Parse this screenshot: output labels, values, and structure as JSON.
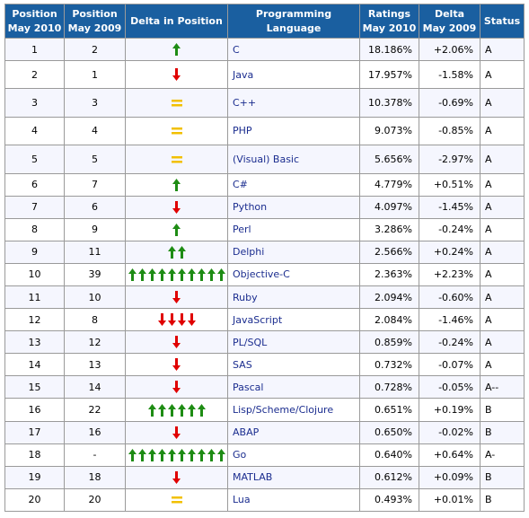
{
  "headers": {
    "pos2010": [
      "Position",
      "May 2010"
    ],
    "pos2009": [
      "Position",
      "May 2009"
    ],
    "delta_pos": "Delta in Position",
    "language": "Programming Language",
    "ratings": [
      "Ratings",
      "May 2010"
    ],
    "delta_rating": [
      "Delta",
      "May 2009"
    ],
    "status": "Status"
  },
  "colors": {
    "header_bg": "#1a5fa0",
    "up_arrow": "#1e8c14",
    "down_arrow": "#e00000",
    "equal": "#f2c000",
    "link": "#1b2d8f"
  },
  "rows": [
    {
      "pos2010": "1",
      "pos2009": "2",
      "delta": {
        "type": "up",
        "count": 1
      },
      "language": "C",
      "rating": "18.186%",
      "delta_rating": "+2.06%",
      "status": "A"
    },
    {
      "pos2010": "2",
      "pos2009": "1",
      "delta": {
        "type": "down",
        "count": 1
      },
      "language": "Java",
      "rating": "17.957%",
      "delta_rating": "-1.58%",
      "status": "A"
    },
    {
      "pos2010": "3",
      "pos2009": "3",
      "delta": {
        "type": "equal",
        "count": 1
      },
      "language": "C++",
      "rating": "10.378%",
      "delta_rating": "-0.69%",
      "status": "A"
    },
    {
      "pos2010": "4",
      "pos2009": "4",
      "delta": {
        "type": "equal",
        "count": 1
      },
      "language": "PHP",
      "rating": "9.073%",
      "delta_rating": "-0.85%",
      "status": "A"
    },
    {
      "pos2010": "5",
      "pos2009": "5",
      "delta": {
        "type": "equal",
        "count": 1
      },
      "language": "(Visual) Basic",
      "rating": "5.656%",
      "delta_rating": "-2.97%",
      "status": "A"
    },
    {
      "pos2010": "6",
      "pos2009": "7",
      "delta": {
        "type": "up",
        "count": 1
      },
      "language": "C#",
      "rating": "4.779%",
      "delta_rating": "+0.51%",
      "status": "A"
    },
    {
      "pos2010": "7",
      "pos2009": "6",
      "delta": {
        "type": "down",
        "count": 1
      },
      "language": "Python",
      "rating": "4.097%",
      "delta_rating": "-1.45%",
      "status": "A"
    },
    {
      "pos2010": "8",
      "pos2009": "9",
      "delta": {
        "type": "up",
        "count": 1
      },
      "language": "Perl",
      "rating": "3.286%",
      "delta_rating": "-0.24%",
      "status": "A"
    },
    {
      "pos2010": "9",
      "pos2009": "11",
      "delta": {
        "type": "up",
        "count": 2
      },
      "language": "Delphi",
      "rating": "2.566%",
      "delta_rating": "+0.24%",
      "status": "A"
    },
    {
      "pos2010": "10",
      "pos2009": "39",
      "delta": {
        "type": "up",
        "count": 10
      },
      "language": "Objective-C",
      "rating": "2.363%",
      "delta_rating": "+2.23%",
      "status": "A"
    },
    {
      "pos2010": "11",
      "pos2009": "10",
      "delta": {
        "type": "down",
        "count": 1
      },
      "language": "Ruby",
      "rating": "2.094%",
      "delta_rating": "-0.60%",
      "status": "A"
    },
    {
      "pos2010": "12",
      "pos2009": "8",
      "delta": {
        "type": "down",
        "count": 4
      },
      "language": "JavaScript",
      "rating": "2.084%",
      "delta_rating": "-1.46%",
      "status": "A"
    },
    {
      "pos2010": "13",
      "pos2009": "12",
      "delta": {
        "type": "down",
        "count": 1
      },
      "language": "PL/SQL",
      "rating": "0.859%",
      "delta_rating": "-0.24%",
      "status": "A"
    },
    {
      "pos2010": "14",
      "pos2009": "13",
      "delta": {
        "type": "down",
        "count": 1
      },
      "language": "SAS",
      "rating": "0.732%",
      "delta_rating": "-0.07%",
      "status": "A"
    },
    {
      "pos2010": "15",
      "pos2009": "14",
      "delta": {
        "type": "down",
        "count": 1
      },
      "language": "Pascal",
      "rating": "0.728%",
      "delta_rating": "-0.05%",
      "status": "A--"
    },
    {
      "pos2010": "16",
      "pos2009": "22",
      "delta": {
        "type": "up",
        "count": 6
      },
      "language": "Lisp/Scheme/Clojure",
      "rating": "0.651%",
      "delta_rating": "+0.19%",
      "status": "B"
    },
    {
      "pos2010": "17",
      "pos2009": "16",
      "delta": {
        "type": "down",
        "count": 1
      },
      "language": "ABAP",
      "rating": "0.650%",
      "delta_rating": "-0.02%",
      "status": "B"
    },
    {
      "pos2010": "18",
      "pos2009": "-",
      "delta": {
        "type": "up",
        "count": 10
      },
      "language": "Go",
      "rating": "0.640%",
      "delta_rating": "+0.64%",
      "status": "A-"
    },
    {
      "pos2010": "19",
      "pos2009": "18",
      "delta": {
        "type": "down",
        "count": 1
      },
      "language": "MATLAB",
      "rating": "0.612%",
      "delta_rating": "+0.09%",
      "status": "B"
    },
    {
      "pos2010": "20",
      "pos2009": "20",
      "delta": {
        "type": "equal",
        "count": 1
      },
      "language": "Lua",
      "rating": "0.493%",
      "delta_rating": "+0.01%",
      "status": "B"
    }
  ]
}
